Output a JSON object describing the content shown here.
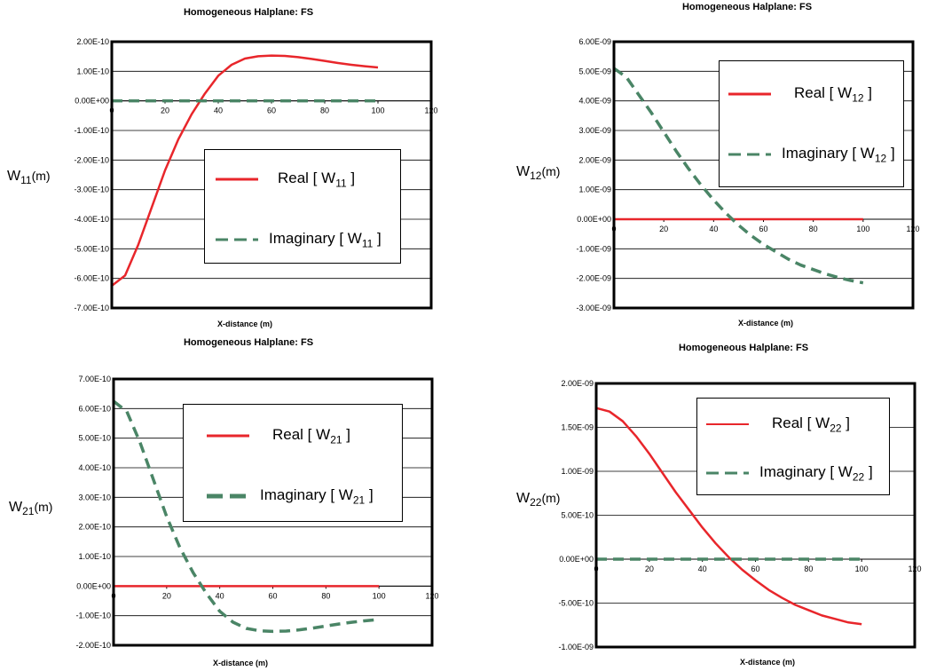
{
  "colors": {
    "real": "#e8262b",
    "imaginary": "#4a8566",
    "grid": "#000000"
  },
  "charts": [
    {
      "title": "Homogeneous Halplane: FS",
      "xlabel": "X-distance (m)",
      "ylabel_main": "W",
      "ylabel_sub": "11",
      "ylabel_unit": "(m)",
      "legend_real": "Real [ W",
      "legend_imag": "Imaginary [ W",
      "legend_sub": "11",
      "legend_close": " ]"
    },
    {
      "title": "Homogeneous Halplane: FS",
      "xlabel": "X-distance (m)",
      "ylabel_main": "W",
      "ylabel_sub": "12",
      "ylabel_unit": "(m)",
      "legend_real": "Real [ W",
      "legend_imag": "Imaginary [ W",
      "legend_sub": "12",
      "legend_close": " ]"
    },
    {
      "title": "Homogeneous Halplane: FS",
      "xlabel": "X-distance (m)",
      "ylabel_main": "W",
      "ylabel_sub": "21",
      "ylabel_unit": "(m)",
      "legend_real": "Real [ W",
      "legend_imag": "Imaginary [ W",
      "legend_sub": "21",
      "legend_close": " ]"
    },
    {
      "title": "Homogeneous Halplane: FS",
      "xlabel": "X-distance (m)",
      "ylabel_main": "W",
      "ylabel_sub": "22",
      "ylabel_unit": "(m)",
      "legend_real": "Real [ W",
      "legend_imag": "Imaginary [ W",
      "legend_sub": "22",
      "legend_close": " ]"
    }
  ],
  "chart_data": [
    {
      "type": "line",
      "title": "Homogeneous Halplane: FS",
      "xlabel": "X-distance (m)",
      "ylabel": "W11 (m)",
      "xlim": [
        0,
        120
      ],
      "ylim": [
        -7e-10,
        2e-10
      ],
      "xticks": [
        "0",
        "20",
        "40",
        "60",
        "80",
        "100",
        "120"
      ],
      "yticks": [
        "-7.00E-10",
        "-6.00E-10",
        "-5.00E-10",
        "-4.00E-10",
        "-3.00E-10",
        "-2.00E-10",
        "-1.00E-10",
        "0.00E+00",
        "1.00E-10",
        "2.00E-10"
      ],
      "grid": true,
      "legend": "center-right",
      "series": [
        {
          "name": "Real [ W11 ]",
          "style": "solid",
          "x": [
            0,
            5,
            10,
            15,
            20,
            25,
            30,
            35,
            40,
            45,
            50,
            55,
            60,
            65,
            70,
            75,
            80,
            85,
            90,
            95,
            100
          ],
          "y": [
            -6.25e-10,
            -5.9e-10,
            -4.85e-10,
            -3.6e-10,
            -2.35e-10,
            -1.3e-10,
            -4.5e-11,
            2.5e-11,
            8.5e-11,
            1.22e-10,
            1.43e-10,
            1.51e-10,
            1.53e-10,
            1.52e-10,
            1.48e-10,
            1.42e-10,
            1.35e-10,
            1.28e-10,
            1.22e-10,
            1.17e-10,
            1.13e-10
          ]
        },
        {
          "name": "Imaginary [ W11 ]",
          "style": "dash",
          "x": [
            0,
            20,
            40,
            60,
            80,
            100
          ],
          "y": [
            0,
            0,
            0,
            0,
            0,
            0
          ]
        }
      ]
    },
    {
      "type": "line",
      "title": "Homogeneous Halplane: FS",
      "xlabel": "X-distance (m)",
      "ylabel": "W12 (m)",
      "xlim": [
        0,
        120
      ],
      "ylim": [
        -3e-09,
        6e-09
      ],
      "xticks": [
        "0",
        "20",
        "40",
        "60",
        "80",
        "100",
        "120"
      ],
      "yticks": [
        "-3.00E-09",
        "-2.00E-09",
        "-1.00E-09",
        "0.00E+00",
        "1.00E-09",
        "2.00E-09",
        "3.00E-09",
        "4.00E-09",
        "5.00E-09",
        "6.00E-09"
      ],
      "grid": true,
      "legend": "top-right",
      "series": [
        {
          "name": "Real [ W12 ]",
          "style": "solid",
          "x": [
            0,
            20,
            40,
            60,
            80,
            100
          ],
          "y": [
            0,
            0,
            0,
            0,
            0,
            0
          ]
        },
        {
          "name": "Imaginary [ W12 ]",
          "style": "dash",
          "x": [
            0,
            5,
            10,
            15,
            20,
            25,
            30,
            35,
            40,
            45,
            50,
            55,
            60,
            65,
            70,
            75,
            80,
            85,
            90,
            95,
            100
          ],
          "y": [
            5.1e-09,
            4.8e-09,
            4.2e-09,
            3.6e-09,
            2.95e-09,
            2.3e-09,
            1.7e-09,
            1.15e-09,
            6.5e-10,
            2e-10,
            -2e-10,
            -5.5e-10,
            -8.5e-10,
            -1.1e-09,
            -1.35e-09,
            -1.55e-09,
            -1.7e-09,
            -1.85e-09,
            -1.97e-09,
            -2.07e-09,
            -2.15e-09
          ]
        }
      ]
    },
    {
      "type": "line",
      "title": "Homogeneous Halplane: FS",
      "xlabel": "X-distance (m)",
      "ylabel": "W21 (m)",
      "xlim": [
        0,
        120
      ],
      "ylim": [
        -2e-10,
        7e-10
      ],
      "xticks": [
        "0",
        "20",
        "40",
        "60",
        "80",
        "100",
        "120"
      ],
      "yticks": [
        "-2.00E-10",
        "-1.00E-10",
        "0.00E+00",
        "1.00E-10",
        "2.00E-10",
        "3.00E-10",
        "4.00E-10",
        "5.00E-10",
        "6.00E-10",
        "7.00E-10"
      ],
      "grid": true,
      "legend": "top-right",
      "series": [
        {
          "name": "Real [ W21 ]",
          "style": "solid",
          "x": [
            0,
            20,
            40,
            60,
            80,
            100
          ],
          "y": [
            0,
            0,
            0,
            0,
            0,
            0
          ]
        },
        {
          "name": "Imaginary [ W21 ]",
          "style": "dash",
          "x": [
            0,
            5,
            10,
            15,
            20,
            25,
            30,
            35,
            40,
            45,
            50,
            55,
            60,
            65,
            70,
            75,
            80,
            85,
            90,
            95,
            100
          ],
          "y": [
            6.25e-10,
            5.9e-10,
            4.85e-10,
            3.6e-10,
            2.35e-10,
            1.3e-10,
            4.5e-11,
            -2.5e-11,
            -8.5e-11,
            -1.22e-10,
            -1.43e-10,
            -1.51e-10,
            -1.53e-10,
            -1.52e-10,
            -1.48e-10,
            -1.42e-10,
            -1.35e-10,
            -1.28e-10,
            -1.22e-10,
            -1.17e-10,
            -1.13e-10
          ]
        }
      ]
    },
    {
      "type": "line",
      "title": "Homogeneous Halplane: FS",
      "xlabel": "X-distance (m)",
      "ylabel": "W22 (m)",
      "xlim": [
        0,
        120
      ],
      "ylim": [
        -1e-09,
        2e-09
      ],
      "xticks": [
        "0",
        "20",
        "40",
        "60",
        "80",
        "100",
        "120"
      ],
      "yticks": [
        "-1.00E-09",
        "-5.00E-10",
        "0.00E+00",
        "5.00E-10",
        "1.00E-09",
        "1.50E-09",
        "2.00E-09"
      ],
      "grid": true,
      "legend": "top-right",
      "series": [
        {
          "name": "Real [ W22 ]",
          "style": "solid",
          "x": [
            0,
            5,
            10,
            15,
            20,
            25,
            30,
            35,
            40,
            45,
            50,
            55,
            60,
            65,
            70,
            75,
            80,
            85,
            90,
            95,
            100
          ],
          "y": [
            1.72e-09,
            1.68e-09,
            1.57e-09,
            1.4e-09,
            1.2e-09,
            9.8e-10,
            7.6e-10,
            5.6e-10,
            3.6e-10,
            1.8e-10,
            2e-11,
            -1.2e-10,
            -2.4e-10,
            -3.5e-10,
            -4.4e-10,
            -5.2e-10,
            -5.8e-10,
            -6.4e-10,
            -6.8e-10,
            -7.2e-10,
            -7.4e-10
          ]
        },
        {
          "name": "Imaginary [ W22 ]",
          "style": "dash",
          "x": [
            0,
            20,
            40,
            60,
            80,
            100
          ],
          "y": [
            0,
            0,
            0,
            0,
            0,
            0
          ]
        }
      ]
    }
  ]
}
